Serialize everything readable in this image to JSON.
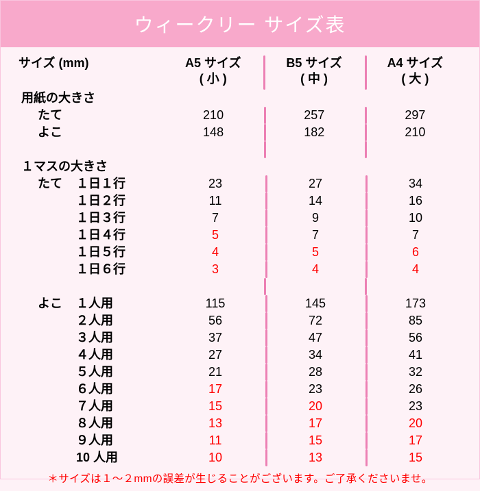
{
  "title": "ウィークリー サイズ表",
  "colors": {
    "title_bg": "#f8a9cb",
    "title_text": "#ffffff",
    "page_bg": "#fef2f7",
    "border": "#f9c5de",
    "separator": "#ec80b4",
    "text": "#000000",
    "highlight": "#ff0000"
  },
  "headers": {
    "label": "サイズ (mm)",
    "a5_line1": "A5 サイズ",
    "a5_line2": "( 小 )",
    "b5_line1": "B5 サイズ",
    "b5_line2": "( 中 )",
    "a4_line1": "A4 サイズ",
    "a4_line2": "( 大 )"
  },
  "paper": {
    "title": "用紙の大きさ",
    "row_tate": {
      "label": "たて",
      "a5": "210",
      "b5": "257",
      "a4": "297"
    },
    "row_yoko": {
      "label": "よこ",
      "a5": "148",
      "b5": "182",
      "a4": "210"
    }
  },
  "cell": {
    "title": "１マスの大きさ",
    "tate": {
      "axis": "たて",
      "rows": [
        {
          "label": "１日１行",
          "a5": "23",
          "b5": "27",
          "a4": "34",
          "a5_red": false,
          "b5_red": false,
          "a4_red": false
        },
        {
          "label": "１日２行",
          "a5": "11",
          "b5": "14",
          "a4": "16",
          "a5_red": false,
          "b5_red": false,
          "a4_red": false
        },
        {
          "label": "１日３行",
          "a5": "7",
          "b5": "9",
          "a4": "10",
          "a5_red": false,
          "b5_red": false,
          "a4_red": false
        },
        {
          "label": "１日４行",
          "a5": "5",
          "b5": "7",
          "a4": "7",
          "a5_red": true,
          "b5_red": false,
          "a4_red": false
        },
        {
          "label": "１日５行",
          "a5": "4",
          "b5": "5",
          "a4": "6",
          "a5_red": true,
          "b5_red": true,
          "a4_red": true
        },
        {
          "label": "１日６行",
          "a5": "3",
          "b5": "4",
          "a4": "4",
          "a5_red": true,
          "b5_red": true,
          "a4_red": true
        }
      ]
    },
    "yoko": {
      "axis": "よこ",
      "rows": [
        {
          "label": "１人用",
          "a5": "115",
          "b5": "145",
          "a4": "173",
          "a5_red": false,
          "b5_red": false,
          "a4_red": false
        },
        {
          "label": "２人用",
          "a5": "56",
          "b5": "72",
          "a4": "85",
          "a5_red": false,
          "b5_red": false,
          "a4_red": false
        },
        {
          "label": "３人用",
          "a5": "37",
          "b5": "47",
          "a4": "56",
          "a5_red": false,
          "b5_red": false,
          "a4_red": false
        },
        {
          "label": "４人用",
          "a5": "27",
          "b5": "34",
          "a4": "41",
          "a5_red": false,
          "b5_red": false,
          "a4_red": false
        },
        {
          "label": "５人用",
          "a5": "21",
          "b5": "28",
          "a4": "32",
          "a5_red": false,
          "b5_red": false,
          "a4_red": false
        },
        {
          "label": "６人用",
          "a5": "17",
          "b5": "23",
          "a4": "26",
          "a5_red": true,
          "b5_red": false,
          "a4_red": false
        },
        {
          "label": "７人用",
          "a5": "15",
          "b5": "20",
          "a4": "23",
          "a5_red": true,
          "b5_red": true,
          "a4_red": false
        },
        {
          "label": "８人用",
          "a5": "13",
          "b5": "17",
          "a4": "20",
          "a5_red": true,
          "b5_red": true,
          "a4_red": true
        },
        {
          "label": "９人用",
          "a5": "11",
          "b5": "15",
          "a4": "17",
          "a5_red": true,
          "b5_red": true,
          "a4_red": true
        },
        {
          "label": "10 人用",
          "a5": "10",
          "b5": "13",
          "a4": "15",
          "a5_red": true,
          "b5_red": true,
          "a4_red": true
        }
      ]
    }
  },
  "footnote": "＊サイズは１～２mmの誤差が生じることがございます。ご了承くださいませ。"
}
